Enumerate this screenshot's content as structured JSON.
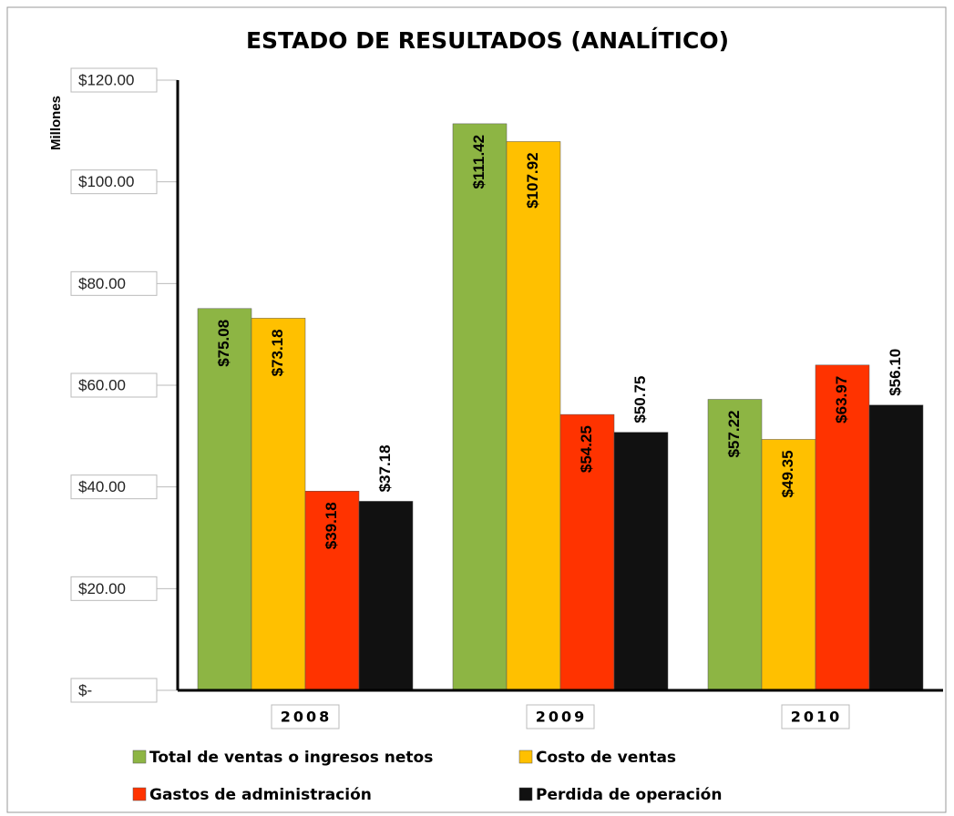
{
  "chart_data": {
    "type": "bar",
    "title": "ESTADO DE RESULTADOS (ANALÍTICO)",
    "y_label": "Millones",
    "categories": [
      "2008",
      "2009",
      "2010"
    ],
    "series": [
      {
        "name": "Total de ventas o ingresos netos",
        "color": "#8db544",
        "values": [
          75.08,
          111.42,
          57.22
        ],
        "value_labels": [
          "$75.08",
          "$111.42",
          "$57.22"
        ]
      },
      {
        "name": "Costo de ventas",
        "color": "#ffc000",
        "values": [
          73.18,
          107.92,
          49.35
        ],
        "value_labels": [
          "$73.18",
          "$107.92",
          "$49.35"
        ]
      },
      {
        "name": "Gastos de administración",
        "color": "#ff3300",
        "values": [
          39.18,
          54.25,
          63.97
        ],
        "value_labels": [
          "$39.18",
          "$54.25",
          "$63.97"
        ]
      },
      {
        "name": "Perdida de operación",
        "color": "#111111",
        "values": [
          37.18,
          50.75,
          56.1
        ],
        "value_labels": [
          "$37.18",
          "$50.75",
          "$56.10"
        ]
      }
    ],
    "ylim": [
      0,
      120
    ],
    "yticks": [
      {
        "value": 0,
        "label": "$-"
      },
      {
        "value": 20,
        "label": "$20.00"
      },
      {
        "value": 40,
        "label": "$40.00"
      },
      {
        "value": 60,
        "label": "$60.00"
      },
      {
        "value": 80,
        "label": "$80.00"
      },
      {
        "value": 100,
        "label": "$100.00"
      },
      {
        "value": 120,
        "label": "$120.00"
      }
    ]
  }
}
